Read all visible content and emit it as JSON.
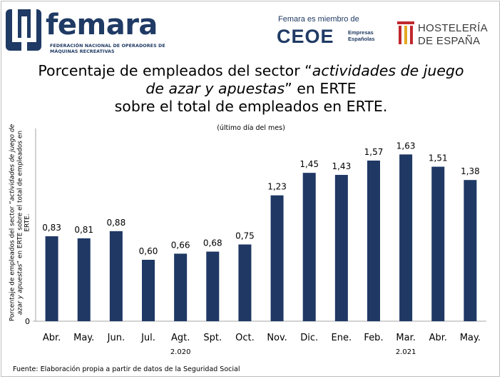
{
  "header": {
    "logo_name": "femara",
    "logo_subtitle": "FEDERACIÓN NACIONAL DE OPERADORES DE MÁQUINAS RECREATIVAS",
    "member_text": "Femara es miembro de",
    "ceoe_name": "CEOE",
    "ceoe_subtitle": "Empresas Españolas",
    "hosteleria_name": "HOSTELERÍA DE ESPAÑA",
    "hosteleria_line1": "HOSTELERÍA",
    "hosteleria_line2": "DE ESPAÑA"
  },
  "colors": {
    "bar": "#1f3864",
    "brand": "#1f3a64",
    "hosteleria_red": "#c0282d"
  },
  "chart_data": {
    "type": "bar",
    "title_part1": "Porcentaje de empleados del sector “",
    "title_italic": "actividades de juego de azar y apuestas",
    "title_part2": "” en ERTE",
    "title_line3": "sobre el total de empleados en ERTE.",
    "subtitle": "(último día del mes)",
    "ylabel_part1": "Porcentaje de empleados del sector “",
    "ylabel_italic": "actividades de juego de azar y apuestas",
    "ylabel_part2": "” en ERTE sobre el total de empleados en ERTE.",
    "xlabel": "",
    "categories": [
      "Abr.",
      "May.",
      "Jun.",
      "Jul.",
      "Agt.",
      "Spt.",
      "Oct.",
      "Nov.",
      "Dic.",
      "Ene.",
      "Feb.",
      "Mar.",
      "Abr.",
      "May."
    ],
    "year_labels": [
      {
        "label": "2.020",
        "category_index": 4
      },
      {
        "label": "2.021",
        "category_index": 11
      }
    ],
    "values": [
      0.83,
      0.81,
      0.88,
      0.6,
      0.66,
      0.68,
      0.75,
      1.23,
      1.45,
      1.43,
      1.57,
      1.63,
      1.51,
      1.38
    ],
    "value_labels": [
      "0,83",
      "0,81",
      "0,88",
      "0,60",
      "0,66",
      "0,68",
      "0,75",
      "1,23",
      "1,45",
      "1,43",
      "1,57",
      "1,63",
      "1,51",
      "1,38"
    ],
    "y_tick_labels": [
      "0"
    ],
    "ylim": [
      0,
      1.8
    ],
    "grid": false,
    "legend": "none"
  },
  "source": "Fuente: Elaboración propia a partir de datos de la Seguridad Social"
}
